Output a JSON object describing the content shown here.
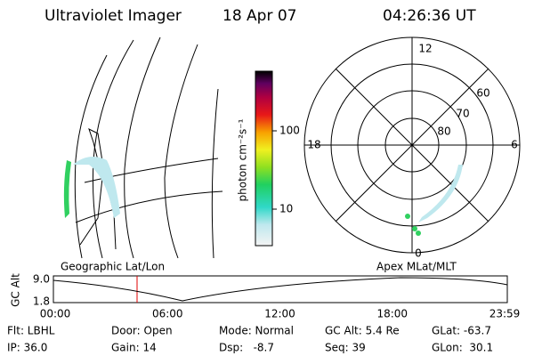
{
  "header": {
    "title": "Ultraviolet Imager",
    "date": "18 Apr 07",
    "time": "04:26:36 UT"
  },
  "colorbar": {
    "label": "photon cm⁻²s⁻¹",
    "ticks": [
      "100",
      "10"
    ]
  },
  "polar": {
    "hour_labels": [
      "12",
      "18",
      "6",
      "0"
    ],
    "lat_labels": [
      "60",
      "70",
      "80"
    ]
  },
  "panel_labels": {
    "left": "Geographic Lat/Lon",
    "right": "Apex MLat/MLT"
  },
  "altitude": {
    "axis_label": "GC Alt",
    "yticks": [
      "9.0",
      "1.8"
    ],
    "xticks": [
      "00:00",
      "06:00",
      "12:00",
      "18:00",
      "23:59"
    ]
  },
  "info": [
    [
      "Flt: LBHL",
      "Door: Open",
      "Mode: Normal",
      "GC Alt: 5.4 Re",
      "GLat: -63.7"
    ],
    [
      "IP: 36.0",
      "Gain: 14",
      "Dsp:   -8.7",
      "Seq: 39",
      "GLon:  30.1"
    ]
  ]
}
